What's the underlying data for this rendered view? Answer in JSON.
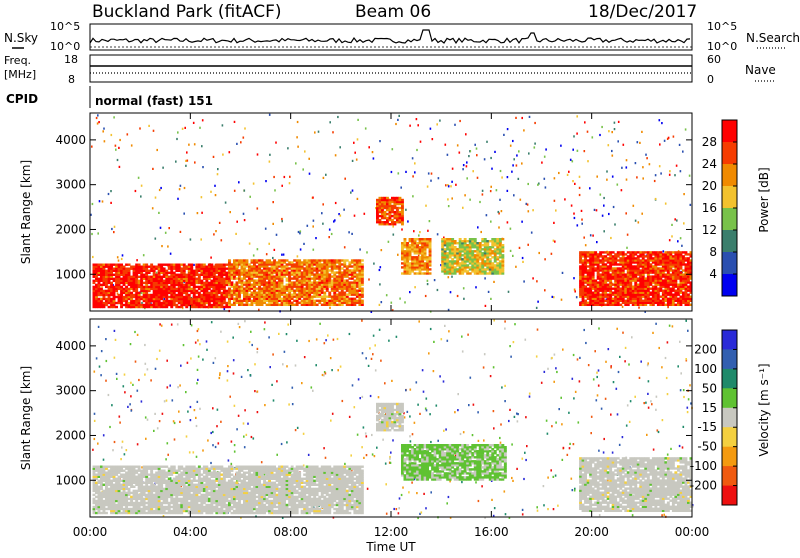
{
  "header": {
    "site": "Buckland Park (fitACF)",
    "beam": "Beam 06",
    "date": "18/Dec/2017"
  },
  "noise_panel": {
    "left_label": "N.Sky",
    "right_label": "N.Search",
    "left_ticks": [
      "10^5",
      "10^0"
    ],
    "right_ticks": [
      "10^5",
      "10^0"
    ]
  },
  "freq_panel": {
    "left_label_line1": "Freq.",
    "left_label_line2": "[MHz]",
    "right_label": "Nave",
    "left_ticks": [
      "18",
      "8"
    ],
    "right_ticks": [
      "60",
      "0"
    ]
  },
  "cpid_panel": {
    "label": "CPID",
    "mode": "normal (fast) 151"
  },
  "x_axis": {
    "ticks": [
      "00:00",
      "04:00",
      "08:00",
      "12:00",
      "16:00",
      "20:00",
      "00:00"
    ],
    "label": "Time UT"
  },
  "y_axis": {
    "label": "Slant Range [km]",
    "ticks": [
      "4000",
      "3000",
      "2000",
      "1000"
    ]
  },
  "power_colorbar": {
    "label": "Power [dB]",
    "ticks": [
      "28",
      "24",
      "20",
      "16",
      "12",
      "8",
      "4"
    ],
    "colors": [
      "#ff0000",
      "#f63c00",
      "#f08a00",
      "#f3c22e",
      "#78c24a",
      "#3a7e6c",
      "#2a4fb0",
      "#0000f0"
    ]
  },
  "velocity_colorbar": {
    "label": "Velocity [m s⁻¹]",
    "ticks": [
      "200",
      "100",
      "50",
      "15",
      "-15",
      "-50",
      "-100",
      "-200"
    ],
    "colors": [
      "#2a2ad8",
      "#325fb0",
      "#1f8a6a",
      "#5fc232",
      "#c8c8c0",
      "#f4d040",
      "#f49a10",
      "#f05a10",
      "#ee1010"
    ]
  },
  "chart_data": [
    {
      "type": "heatmap",
      "title": "Power [dB]",
      "xlabel": "Time UT",
      "ylabel": "Slant Range [km]",
      "x_range_hours": [
        0,
        24
      ],
      "y_range_km": [
        180,
        4600
      ],
      "z_range": [
        0,
        30
      ],
      "regions": [
        {
          "t_start": 0.1,
          "t_end": 5.5,
          "r_start": 250,
          "r_end": 1200,
          "value": 27
        },
        {
          "t_start": 5.5,
          "t_end": 10.8,
          "r_start": 300,
          "r_end": 1300,
          "value": 22
        },
        {
          "t_start": 11.4,
          "t_end": 12.4,
          "r_start": 2100,
          "r_end": 2700,
          "value": 24
        },
        {
          "t_start": 12.4,
          "t_end": 13.5,
          "r_start": 1000,
          "r_end": 1800,
          "value": 20
        },
        {
          "t_start": 14.0,
          "t_end": 16.5,
          "r_start": 1000,
          "r_end": 1800,
          "value": 16
        },
        {
          "t_start": 19.5,
          "t_end": 24.0,
          "r_start": 300,
          "r_end": 1500,
          "value": 26
        }
      ]
    },
    {
      "type": "heatmap",
      "title": "Velocity [m s⁻¹]",
      "xlabel": "Time UT",
      "ylabel": "Slant Range [km]",
      "x_range_hours": [
        0,
        24
      ],
      "y_range_km": [
        180,
        4600
      ],
      "z_range": [
        -250,
        250
      ],
      "regions": [
        {
          "t_start": 0.1,
          "t_end": 10.8,
          "r_start": 250,
          "r_end": 1300,
          "value": 0
        },
        {
          "t_start": 11.4,
          "t_end": 12.4,
          "r_start": 2100,
          "r_end": 2700,
          "value": 0
        },
        {
          "t_start": 12.4,
          "t_end": 16.5,
          "r_start": 1000,
          "r_end": 1800,
          "value": 40
        },
        {
          "t_start": 19.5,
          "t_end": 24.0,
          "r_start": 300,
          "r_end": 1500,
          "value": 0
        }
      ]
    }
  ]
}
